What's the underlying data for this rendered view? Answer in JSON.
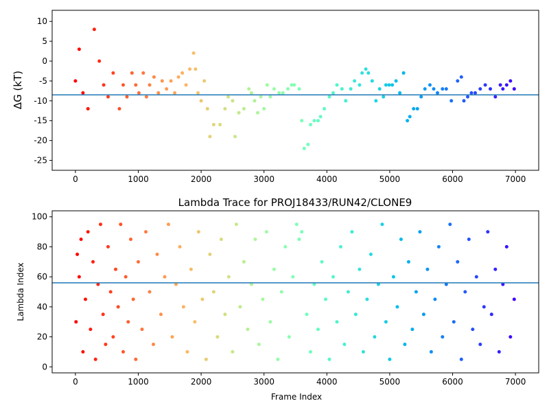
{
  "chart_data": [
    {
      "type": "scatter",
      "title": "",
      "xlabel": "",
      "ylabel": "ΔG (kT)",
      "xlim": [
        -370,
        7370
      ],
      "ylim": [
        -27.5,
        12.8
      ],
      "xticks": [
        0,
        1000,
        2000,
        3000,
        4000,
        5000,
        6000,
        7000
      ],
      "yticks": [
        -25,
        -20,
        -15,
        -10,
        -5,
        0,
        5,
        10
      ],
      "hline": -8.5,
      "hline_color": "#1f77b4",
      "color_by_frame": "rainbow (red at start → purple at end)",
      "series": [
        {
          "x": [
            0,
            60,
            120,
            200,
            300,
            380,
            450,
            520,
            600,
            700,
            760,
            820,
            900,
            960,
            1010,
            1080,
            1130,
            1180,
            1250,
            1320,
            1380,
            1450,
            1520,
            1580,
            1640,
            1700,
            1760,
            1820,
            1880,
            1910,
            1950,
            2000,
            2050,
            2100,
            2140,
            2200,
            2300,
            2380,
            2430,
            2500,
            2540,
            2600,
            2680,
            2760,
            2800,
            2850,
            2900,
            2950,
            3000,
            3050,
            3100,
            3160,
            3240,
            3300,
            3380,
            3440,
            3480,
            3560,
            3600,
            3640,
            3700,
            3740,
            3800,
            3860,
            3900,
            3960,
            4040,
            4100,
            4160,
            4240,
            4300,
            4380,
            4440,
            4520,
            4560,
            4620,
            4660,
            4720,
            4780,
            4840,
            4900,
            4940,
            4990,
            5040,
            5100,
            5160,
            5220,
            5280,
            5320,
            5380,
            5440,
            5500,
            5560,
            5640,
            5700,
            5760,
            5840,
            5900,
            5980,
            6080,
            6140,
            6180,
            6240,
            6300,
            6360,
            6440,
            6520,
            6600,
            6680,
            6760,
            6800,
            6860,
            6920,
            6980
          ],
          "y": [
            -5,
            3,
            -8,
            -12,
            8,
            0,
            -6,
            -9,
            -3,
            -12,
            -6,
            -9,
            -3,
            -6,
            -8,
            -3,
            -9,
            -6,
            -4,
            -8,
            -5,
            -7,
            -5,
            -8,
            -4,
            -3,
            -6,
            -2,
            2,
            -2,
            -8,
            -10,
            -5,
            -12,
            -19,
            -16,
            -16,
            -12,
            -9,
            -10,
            -19,
            -13,
            -12,
            -7,
            -8,
            -10,
            -13,
            -9,
            -12,
            -6,
            -9,
            -7,
            -8,
            -8,
            -7,
            -6,
            -6,
            -7,
            -15,
            -22,
            -21,
            -16,
            -15,
            -15,
            -14,
            -12,
            -9,
            -8,
            -6,
            -7,
            -10,
            -7,
            -5,
            -6,
            -3,
            -2,
            -3,
            -5,
            -10,
            -7,
            -9,
            -6,
            -6,
            -6,
            -5,
            -8,
            -3,
            -15,
            -14,
            -12,
            -12,
            -9,
            -7,
            -6,
            -7,
            -8,
            -7,
            -7,
            -10,
            -5,
            -4,
            -10,
            -9,
            -8,
            -8,
            -7,
            -6,
            -7,
            -9,
            -6,
            -7,
            -6,
            -5,
            -7
          ]
        }
      ]
    },
    {
      "type": "scatter",
      "title": "Lambda Trace for PROJ18433/RUN42/CLONE9",
      "xlabel": "Frame Index",
      "ylabel": "Lambda Index",
      "xlim": [
        -370,
        7370
      ],
      "ylim": [
        -4,
        104
      ],
      "xticks": [
        0,
        1000,
        2000,
        3000,
        4000,
        5000,
        6000,
        7000
      ],
      "yticks": [
        0,
        20,
        40,
        60,
        80,
        100
      ],
      "hline": 56,
      "hline_color": "#1f77b4",
      "color_by_frame": "rainbow (red at start → purple at end)",
      "series": [
        {
          "x": [
            10,
            30,
            60,
            90,
            120,
            160,
            200,
            240,
            280,
            320,
            360,
            400,
            440,
            480,
            520,
            560,
            600,
            640,
            680,
            720,
            760,
            800,
            840,
            880,
            920,
            960,
            1000,
            1060,
            1120,
            1180,
            1240,
            1300,
            1360,
            1420,
            1480,
            1540,
            1600,
            1660,
            1720,
            1780,
            1840,
            1900,
            1960,
            2020,
            2080,
            2140,
            2200,
            2260,
            2320,
            2380,
            2440,
            2500,
            2560,
            2620,
            2680,
            2740,
            2800,
            2860,
            2920,
            2980,
            3040,
            3100,
            3160,
            3220,
            3280,
            3340,
            3400,
            3460,
            3520,
            3560,
            3600,
            3680,
            3740,
            3800,
            3860,
            3920,
            3980,
            4040,
            4100,
            4160,
            4220,
            4280,
            4340,
            4400,
            4460,
            4520,
            4580,
            4640,
            4700,
            4760,
            4820,
            4880,
            4940,
            5000,
            5060,
            5120,
            5180,
            5240,
            5300,
            5360,
            5420,
            5480,
            5540,
            5600,
            5660,
            5720,
            5780,
            5840,
            5900,
            5960,
            6020,
            6080,
            6140,
            6200,
            6260,
            6320,
            6380,
            6440,
            6500,
            6560,
            6620,
            6680,
            6740,
            6800,
            6860,
            6920,
            6980
          ],
          "y": [
            30,
            75,
            60,
            85,
            10,
            45,
            90,
            25,
            70,
            5,
            55,
            95,
            35,
            15,
            80,
            50,
            20,
            65,
            40,
            95,
            10,
            60,
            30,
            85,
            45,
            5,
            70,
            25,
            90,
            50,
            15,
            75,
            35,
            60,
            95,
            20,
            55,
            80,
            40,
            10,
            65,
            30,
            90,
            45,
            5,
            75,
            50,
            20,
            85,
            35,
            60,
            10,
            95,
            40,
            70,
            25,
            55,
            85,
            15,
            45,
            90,
            30,
            65,
            5,
            50,
            80,
            20,
            60,
            95,
            85,
            90,
            35,
            10,
            55,
            25,
            70,
            45,
            5,
            60,
            30,
            80,
            15,
            50,
            90,
            35,
            65,
            10,
            45,
            75,
            20,
            55,
            95,
            30,
            5,
            60,
            40,
            85,
            15,
            70,
            25,
            50,
            90,
            35,
            65,
            10,
            45,
            80,
            20,
            55,
            95,
            30,
            70,
            5,
            50,
            85,
            25,
            60,
            15,
            40,
            90,
            35,
            65,
            10,
            55,
            80,
            20,
            45
          ]
        }
      ]
    }
  ]
}
